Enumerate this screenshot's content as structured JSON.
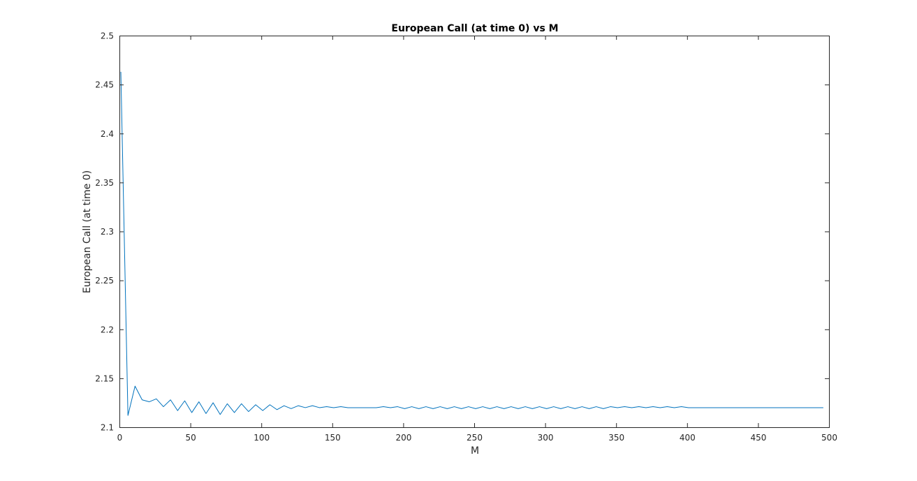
{
  "chart_data": {
    "type": "line",
    "title": "European Call (at time 0) vs M",
    "xlabel": "M",
    "ylabel": "European Call (at time 0)",
    "xlim": [
      0,
      500
    ],
    "ylim": [
      2.1,
      2.5
    ],
    "xticks": [
      "0",
      "50",
      "100",
      "150",
      "200",
      "250",
      "300",
      "350",
      "400",
      "450",
      "500"
    ],
    "yticks": [
      "2.1",
      "2.15",
      "2.2",
      "2.25",
      "2.3",
      "2.35",
      "2.4",
      "2.45",
      "2.5"
    ],
    "grid": false,
    "legend": "none",
    "series_color": "#0072BD",
    "series": [
      {
        "x": [
          1,
          6,
          11,
          16,
          21,
          26,
          31,
          36,
          41,
          46,
          51,
          56,
          61,
          66,
          71,
          76,
          81,
          86,
          91,
          96,
          101,
          106,
          111,
          116,
          121,
          126,
          131,
          136,
          141,
          146,
          151,
          156,
          161,
          166,
          171,
          176,
          181,
          186,
          191,
          196,
          201,
          206,
          211,
          216,
          221,
          226,
          231,
          236,
          241,
          246,
          251,
          256,
          261,
          266,
          271,
          276,
          281,
          286,
          291,
          296,
          301,
          306,
          311,
          316,
          321,
          326,
          331,
          336,
          341,
          346,
          351,
          356,
          361,
          366,
          371,
          376,
          381,
          386,
          391,
          396,
          401,
          406,
          411,
          416,
          421,
          426,
          431,
          436,
          441,
          446,
          451,
          456,
          461,
          466,
          471,
          476,
          481,
          486,
          491,
          496
        ],
        "values": [
          2.463,
          2.112,
          2.142,
          2.128,
          2.126,
          2.129,
          2.121,
          2.128,
          2.117,
          2.127,
          2.115,
          2.126,
          2.114,
          2.125,
          2.113,
          2.124,
          2.115,
          2.124,
          2.116,
          2.123,
          2.117,
          2.123,
          2.118,
          2.122,
          2.119,
          2.122,
          2.12,
          2.122,
          2.12,
          2.121,
          2.12,
          2.121,
          2.12,
          2.12,
          2.12,
          2.12,
          2.12,
          2.121,
          2.12,
          2.121,
          2.119,
          2.121,
          2.119,
          2.121,
          2.119,
          2.121,
          2.119,
          2.121,
          2.119,
          2.121,
          2.119,
          2.121,
          2.119,
          2.121,
          2.119,
          2.121,
          2.119,
          2.121,
          2.119,
          2.121,
          2.119,
          2.121,
          2.119,
          2.121,
          2.119,
          2.121,
          2.119,
          2.121,
          2.119,
          2.121,
          2.12,
          2.121,
          2.12,
          2.121,
          2.12,
          2.121,
          2.12,
          2.121,
          2.12,
          2.121,
          2.12,
          2.12,
          2.12,
          2.12,
          2.12,
          2.12,
          2.12,
          2.12,
          2.12,
          2.12,
          2.12,
          2.12,
          2.12,
          2.12,
          2.12,
          2.12,
          2.12,
          2.12,
          2.12,
          2.12
        ]
      }
    ]
  }
}
